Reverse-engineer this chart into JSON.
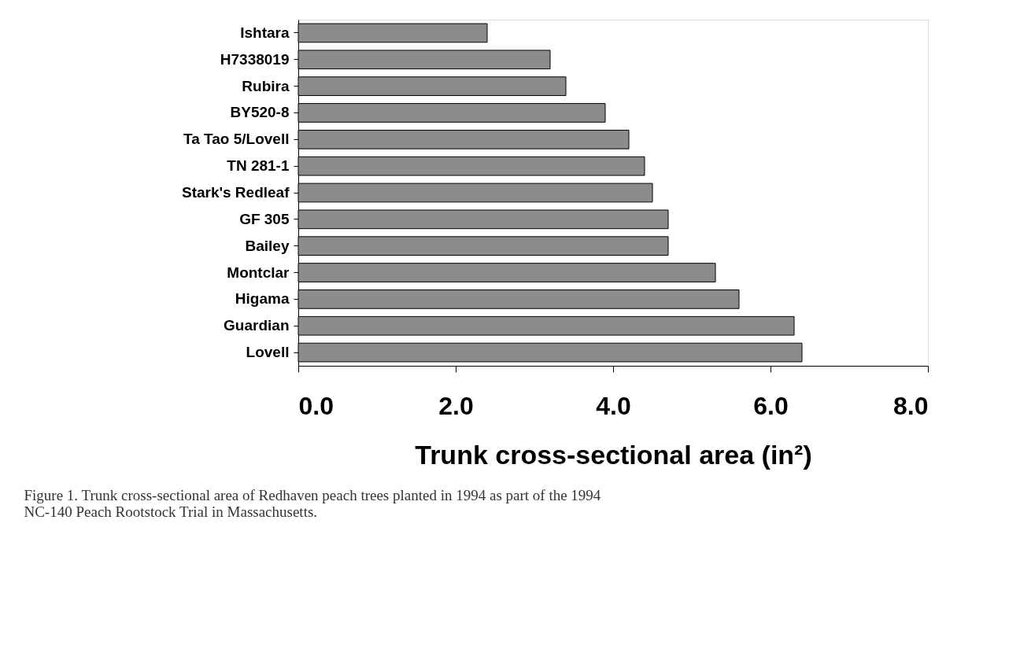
{
  "chart_data": {
    "type": "bar",
    "orientation": "horizontal",
    "categories": [
      "Ishtara",
      "H7338019",
      "Rubira",
      "BY520-8",
      "Ta Tao 5/Lovell",
      "TN 281-1",
      "Stark's Redleaf",
      "GF 305",
      "Bailey",
      "Montclar",
      "Higama",
      "Guardian",
      "Lovell"
    ],
    "values": [
      2.4,
      3.2,
      3.4,
      3.9,
      4.2,
      4.4,
      4.5,
      4.7,
      4.7,
      5.3,
      5.6,
      6.3,
      6.4
    ],
    "color": "#8c8c8c",
    "xlim": [
      0,
      8
    ],
    "xticks": [
      {
        "value": 0,
        "label": "0.0"
      },
      {
        "value": 2,
        "label": "2.0"
      },
      {
        "value": 4,
        "label": "4.0"
      },
      {
        "value": 6,
        "label": "6.0"
      },
      {
        "value": 8,
        "label": "8.0"
      }
    ],
    "xlabel": "Trunk cross-sectional area (in²)",
    "grid": false,
    "legend": false,
    "annotations": [
      "Figure 1.  Trunk cross-sectional area of Redhaven peach trees planted in 1994 as part of the 1994 NC-140 Peach Rootstock Trial in Massachusetts."
    ]
  }
}
